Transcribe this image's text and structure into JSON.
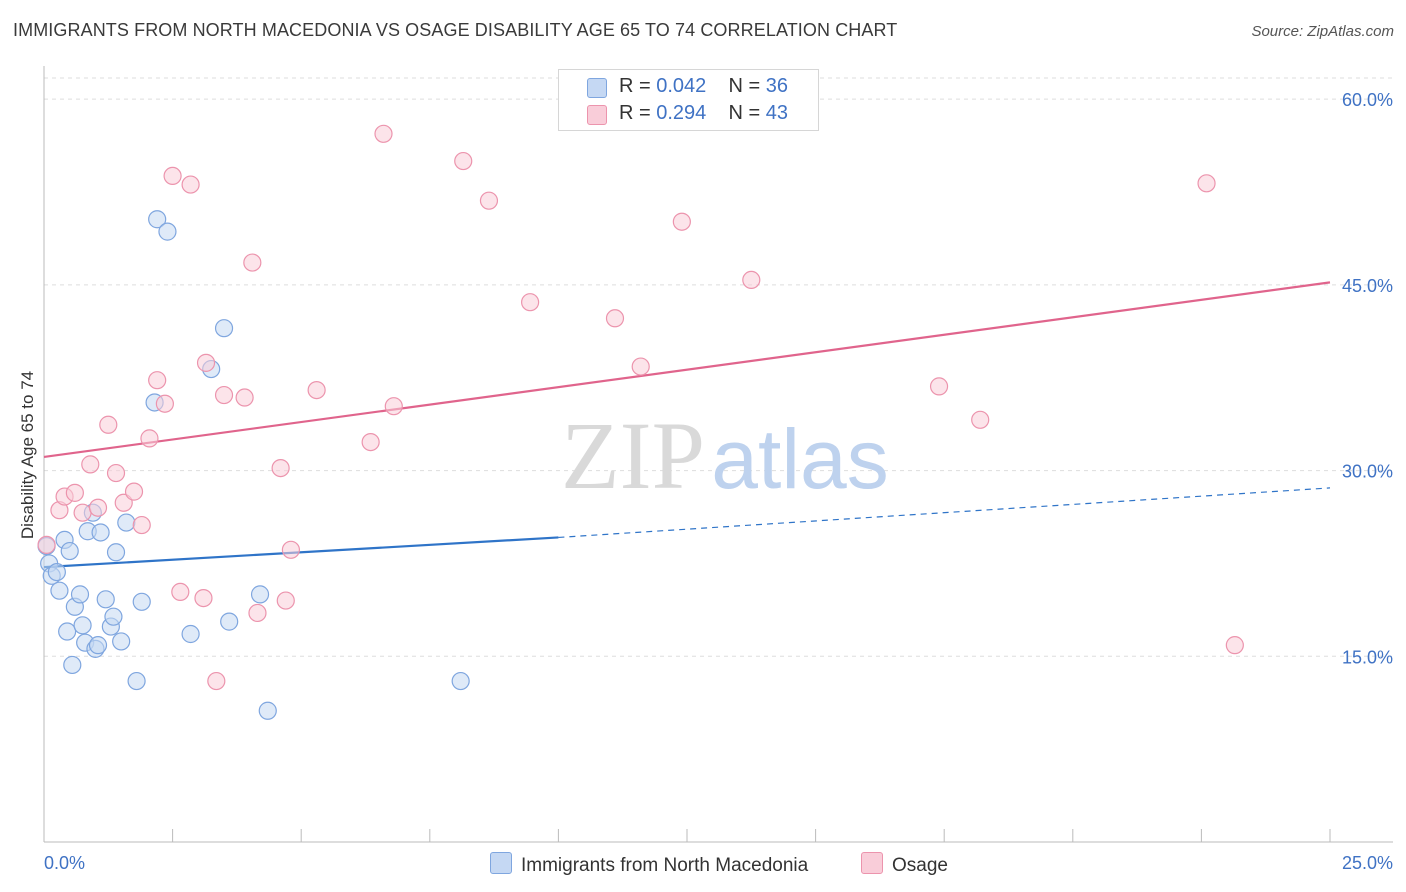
{
  "title": "IMMIGRANTS FROM NORTH MACEDONIA VS OSAGE DISABILITY AGE 65 TO 74 CORRELATION CHART",
  "source": "Source: ZipAtlas.com",
  "watermark": {
    "zip": "ZIP",
    "atlas": "atlas"
  },
  "colors": {
    "blue_fill": "#c5d8f3",
    "blue_stroke": "#7fa6df",
    "blue_line": "#2f74c8",
    "pink_fill": "#f9cdd9",
    "pink_stroke": "#ec94ad",
    "pink_line": "#e0648c",
    "axis_text": "#3f72c4",
    "grid": "#dddddd"
  },
  "legend": {
    "series1": {
      "r_label": "R = ",
      "r_value": "0.042",
      "n_label": "N = ",
      "n_value": "36"
    },
    "series2": {
      "r_label": "R = ",
      "r_value": "0.294",
      "n_label": "N = ",
      "n_value": "43"
    }
  },
  "chart_data": {
    "type": "scatter",
    "title": "IMMIGRANTS FROM NORTH MACEDONIA VS OSAGE DISABILITY AGE 65 TO 74 CORRELATION CHART",
    "xlabel": "",
    "ylabel": "Disability Age 65 to 74",
    "xlim": [
      0,
      25
    ],
    "ylim": [
      0,
      63
    ],
    "x_tick_labels": [
      "0.0%",
      "25.0%"
    ],
    "y_ticks": [
      15,
      30,
      45,
      60
    ],
    "y_tick_labels": [
      "15.0%",
      "30.0%",
      "45.0%",
      "60.0%"
    ],
    "legend_position": "top-center",
    "series": [
      {
        "name": "Immigrants from North Macedonia",
        "color": "blue",
        "trend": {
          "x0": 0,
          "y0": 22.2,
          "x1": 10,
          "y1": 24.6,
          "dashed_to_x": 25,
          "dashed_to_y": 28.6
        },
        "points": [
          [
            0.05,
            23.9
          ],
          [
            0.1,
            22.5
          ],
          [
            0.15,
            21.5
          ],
          [
            0.25,
            21.8
          ],
          [
            0.3,
            20.3
          ],
          [
            0.4,
            24.4
          ],
          [
            0.45,
            17.0
          ],
          [
            0.5,
            23.5
          ],
          [
            0.55,
            14.3
          ],
          [
            0.6,
            19.0
          ],
          [
            0.7,
            20.0
          ],
          [
            0.75,
            17.5
          ],
          [
            0.8,
            16.1
          ],
          [
            0.85,
            25.1
          ],
          [
            0.95,
            26.6
          ],
          [
            1.0,
            15.6
          ],
          [
            1.05,
            15.9
          ],
          [
            1.1,
            25.0
          ],
          [
            1.2,
            19.6
          ],
          [
            1.3,
            17.4
          ],
          [
            1.35,
            18.2
          ],
          [
            1.4,
            23.4
          ],
          [
            1.5,
            16.2
          ],
          [
            1.6,
            25.8
          ],
          [
            1.8,
            13.0
          ],
          [
            1.9,
            19.4
          ],
          [
            2.15,
            35.5
          ],
          [
            2.2,
            50.3
          ],
          [
            2.4,
            49.3
          ],
          [
            2.85,
            16.8
          ],
          [
            3.25,
            38.2
          ],
          [
            3.5,
            41.5
          ],
          [
            3.6,
            17.8
          ],
          [
            4.2,
            20.0
          ],
          [
            4.35,
            10.6
          ],
          [
            8.1,
            13.0
          ]
        ]
      },
      {
        "name": "Osage",
        "color": "pink",
        "trend": {
          "x0": 0,
          "y0": 31.1,
          "x1": 25,
          "y1": 45.2
        },
        "points": [
          [
            0.05,
            24.0
          ],
          [
            0.3,
            26.8
          ],
          [
            0.4,
            27.9
          ],
          [
            0.6,
            28.2
          ],
          [
            0.75,
            26.6
          ],
          [
            0.9,
            30.5
          ],
          [
            1.05,
            27.0
          ],
          [
            1.25,
            33.7
          ],
          [
            1.4,
            29.8
          ],
          [
            1.55,
            27.4
          ],
          [
            1.75,
            28.3
          ],
          [
            1.9,
            25.6
          ],
          [
            2.05,
            32.6
          ],
          [
            2.2,
            37.3
          ],
          [
            2.35,
            35.4
          ],
          [
            2.5,
            53.8
          ],
          [
            2.65,
            20.2
          ],
          [
            2.85,
            53.1
          ],
          [
            3.1,
            19.7
          ],
          [
            3.15,
            38.7
          ],
          [
            3.35,
            13.0
          ],
          [
            3.5,
            36.1
          ],
          [
            3.9,
            35.9
          ],
          [
            4.05,
            46.8
          ],
          [
            4.15,
            18.5
          ],
          [
            4.6,
            30.2
          ],
          [
            4.7,
            19.5
          ],
          [
            4.8,
            23.6
          ],
          [
            5.3,
            36.5
          ],
          [
            6.35,
            32.3
          ],
          [
            6.6,
            57.2
          ],
          [
            6.8,
            35.2
          ],
          [
            8.15,
            55.0
          ],
          [
            8.65,
            51.8
          ],
          [
            9.45,
            43.6
          ],
          [
            11.1,
            42.3
          ],
          [
            11.6,
            38.4
          ],
          [
            12.4,
            50.1
          ],
          [
            13.75,
            45.4
          ],
          [
            17.4,
            36.8
          ],
          [
            18.2,
            34.1
          ],
          [
            22.6,
            53.2
          ],
          [
            23.15,
            15.9
          ]
        ]
      }
    ]
  }
}
